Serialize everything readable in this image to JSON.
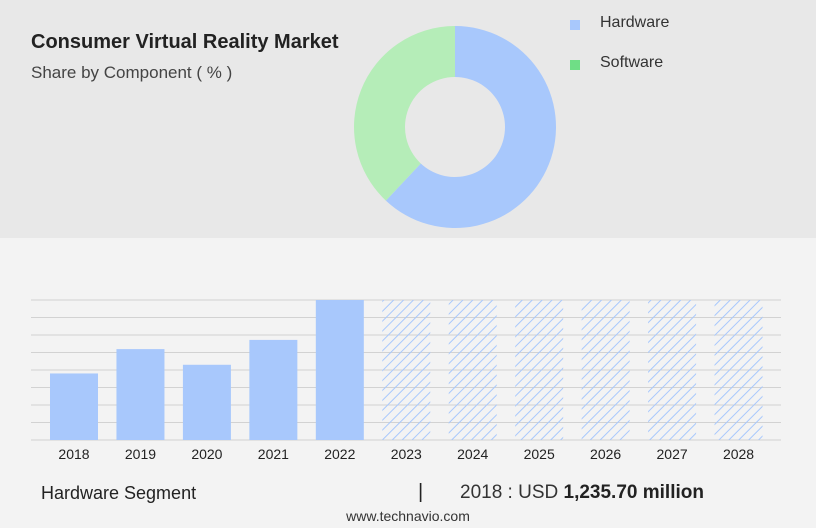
{
  "header": {
    "title": "Consumer Virtual Reality Market",
    "subtitle": "Share by Component ( % )"
  },
  "colors": {
    "hardware": "#a8c8fc",
    "software": "#b5edb8",
    "software_legend": "#6fde86",
    "forecast_hatch": "#a8c8fc"
  },
  "chart_data": [
    {
      "type": "pie",
      "style": "donut",
      "title": "",
      "slices": [
        {
          "name": "Hardware",
          "value": 62
        },
        {
          "name": "Software",
          "value": 38
        }
      ],
      "legend": {
        "placement": "top-right",
        "entries": [
          "Hardware",
          "Software"
        ]
      }
    },
    {
      "type": "bar",
      "title": "",
      "categories": [
        "2018",
        "2019",
        "2020",
        "2021",
        "2022",
        "2023",
        "2024",
        "2025",
        "2026",
        "2027",
        "2028"
      ],
      "series": [
        {
          "values": [
            1235.7,
            1688,
            1397,
            1859,
            2600,
            2600,
            2600,
            2600,
            2600,
            2600,
            2600
          ],
          "forecast": [
            false,
            false,
            false,
            false,
            false,
            true,
            true,
            true,
            true,
            true,
            true
          ]
        }
      ],
      "ylim": [
        0,
        2600
      ],
      "grid": true,
      "xlabel": "",
      "ylabel": ""
    }
  ],
  "footer": {
    "segment": "Hardware Segment",
    "separator": "|",
    "value_prefix": "2018 : USD",
    "value": "1,235.70 million",
    "source": "www.technavio.com"
  }
}
